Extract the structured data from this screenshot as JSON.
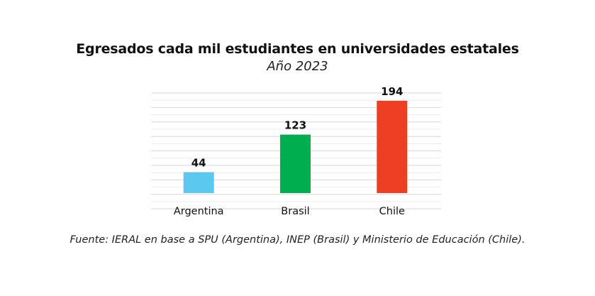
{
  "chart_data": {
    "type": "bar",
    "title": "Egresados cada mil estudiantes en universidades estatales",
    "subtitle": "Año 2023",
    "categories": [
      "Argentina",
      "Brasil",
      "Chile"
    ],
    "values": [
      44,
      123,
      194
    ],
    "data_labels": [
      "44",
      "123",
      "194"
    ],
    "colors": [
      "#5BC8F0",
      "#00AD4F",
      "#EE3E24"
    ],
    "xlabel": "",
    "ylabel": "",
    "ylim": [
      0,
      200
    ],
    "grid": true,
    "legend": "none"
  },
  "source": "Fuente: IERAL en base a SPU (Argentina), INEP (Brasil) y Ministerio de Educación (Chile)."
}
